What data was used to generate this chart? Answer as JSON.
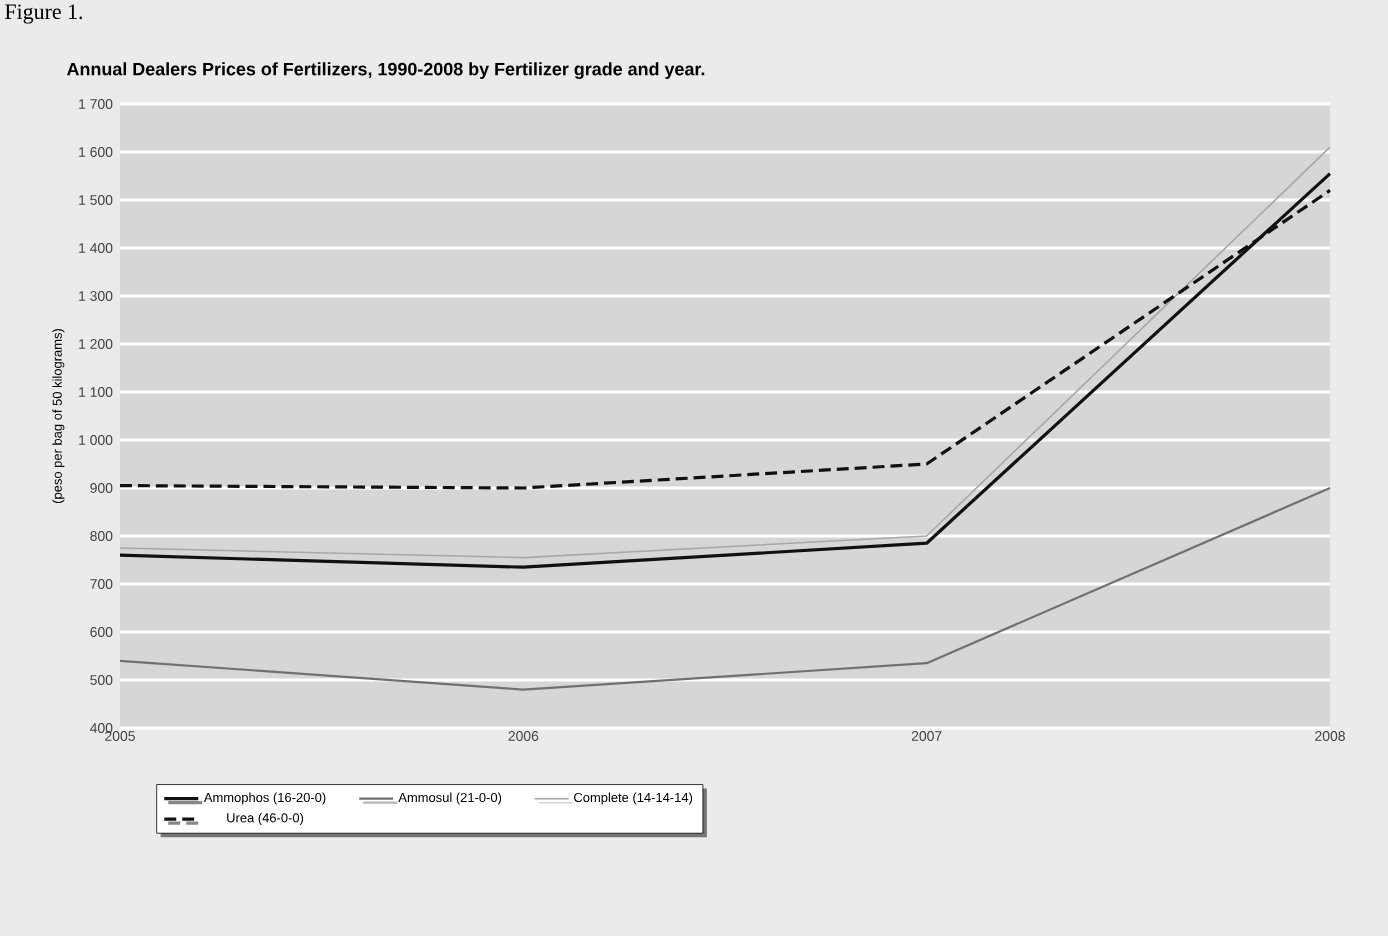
{
  "chart_data": {
    "type": "line",
    "title": "Annual Dealers Prices of Fertilizers, 1990-2008 by Fertilizer grade and year.",
    "ylabel": "(peso per bag of 50 kilograms)",
    "annotations": [
      "Figure 1."
    ],
    "x": [
      2005,
      2006,
      2007,
      2008
    ],
    "xlim": [
      2005,
      2008
    ],
    "xticks": [
      2005,
      2006,
      2007,
      2008
    ],
    "ylim": [
      400,
      1700
    ],
    "yticks": [
      400,
      500,
      600,
      700,
      800,
      900,
      {
        "value": 1000,
        "label": "1 000"
      },
      {
        "value": 1100,
        "label": "1 100"
      },
      {
        "value": 1200,
        "label": "1 200"
      },
      {
        "value": 1300,
        "label": "1 300"
      },
      {
        "value": 1400,
        "label": "1 400"
      },
      {
        "value": 1500,
        "label": "1 500"
      },
      {
        "value": 1600,
        "label": "1 600"
      },
      {
        "value": 1700,
        "label": "1 700"
      }
    ],
    "grid": "y",
    "legend": "bottom",
    "marker": "none",
    "series": [
      {
        "name": "Ammophos (16-20-0)",
        "color": "#101010",
        "line_style": "solid",
        "values": [
          760,
          735,
          785,
          1555
        ]
      },
      {
        "name": "Ammosul (21-0-0)",
        "color": "#707070",
        "line_style": "solid",
        "values": [
          540,
          480,
          535,
          900
        ]
      },
      {
        "name": "Complete (14-14-14)",
        "color": "#a8a8a8",
        "line_style": "solid",
        "values": [
          775,
          755,
          800,
          1610
        ]
      },
      {
        "name": "Urea (46-0-0)",
        "color": "#101010",
        "line_style": "dashed",
        "values": [
          905,
          900,
          950,
          1520
        ]
      }
    ]
  }
}
